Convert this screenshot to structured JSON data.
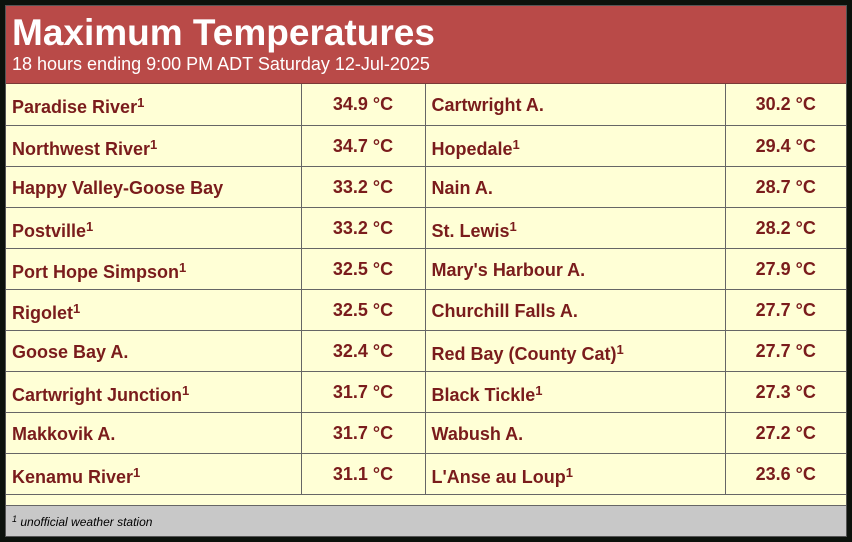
{
  "header": {
    "title": "Maximum Temperatures",
    "subtitle": "18 hours ending 9:00 PM ADT Saturday 12-Jul-2025"
  },
  "table": {
    "rows": [
      {
        "left": {
          "station": "Paradise River",
          "note": "1",
          "temp": "34.9 °C"
        },
        "right": {
          "station": "Cartwright A.",
          "temp": "30.2 °C"
        }
      },
      {
        "left": {
          "station": "Northwest River",
          "note": "1",
          "temp": "34.7 °C"
        },
        "right": {
          "station": "Hopedale",
          "note": "1",
          "temp": "29.4 °C"
        }
      },
      {
        "left": {
          "station": "Happy Valley-Goose Bay",
          "temp": "33.2 °C"
        },
        "right": {
          "station": "Nain A.",
          "temp": "28.7 °C"
        }
      },
      {
        "left": {
          "station": "Postville",
          "note": "1",
          "temp": "33.2 °C"
        },
        "right": {
          "station": "St. Lewis",
          "note": "1",
          "temp": "28.2 °C"
        }
      },
      {
        "left": {
          "station": "Port Hope Simpson",
          "note": "1",
          "temp": "32.5 °C"
        },
        "right": {
          "station": "Mary's Harbour A.",
          "temp": "27.9 °C"
        }
      },
      {
        "left": {
          "station": "Rigolet",
          "note": "1",
          "temp": "32.5 °C"
        },
        "right": {
          "station": "Churchill Falls A.",
          "temp": "27.7 °C"
        }
      },
      {
        "left": {
          "station": "Goose Bay A.",
          "temp": "32.4 °C"
        },
        "right": {
          "station": "Red Bay (County Cat)",
          "note": "1",
          "temp": "27.7 °C"
        }
      },
      {
        "left": {
          "station": "Cartwright Junction",
          "note": "1",
          "temp": "31.7 °C"
        },
        "right": {
          "station": "Black Tickle",
          "note": "1",
          "temp": "27.3 °C"
        }
      },
      {
        "left": {
          "station": "Makkovik A.",
          "temp": "31.7 °C"
        },
        "right": {
          "station": "Wabush A.",
          "temp": "27.2 °C"
        }
      },
      {
        "left": {
          "station": "Kenamu River",
          "note": "1",
          "temp": "31.1 °C"
        },
        "right": {
          "station": "L'Anse au Loup",
          "note": "1",
          "temp": "23.6 °C"
        }
      }
    ]
  },
  "footnote": {
    "mark": "1",
    "text": "unofficial weather station"
  }
}
